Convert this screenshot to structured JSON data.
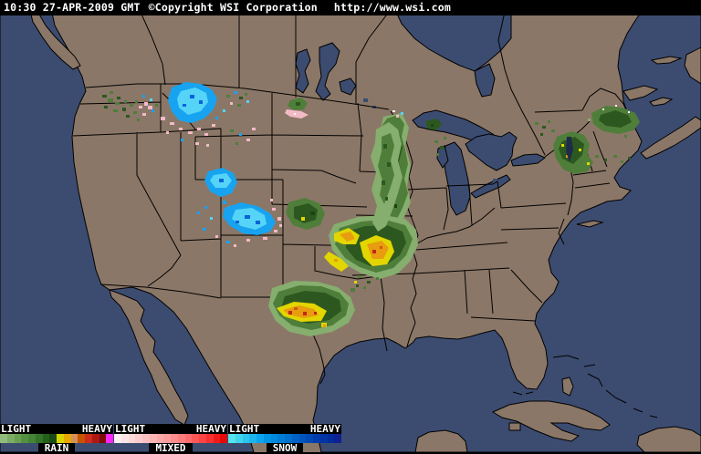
{
  "header": {
    "datetime": "10:30 27-APR-2009 GMT",
    "copyright": "©Copyright WSI Corporation",
    "url": "http://www.wsi.com"
  },
  "legend": {
    "light_label": "LIGHT",
    "heavy_label": "HEAVY",
    "scales": [
      {
        "name": "RAIN",
        "colors": [
          "#90BC7C",
          "#7CAC64",
          "#68A050",
          "#549044",
          "#448434",
          "#347428",
          "#24601C",
          "#184C12",
          "#D8D400",
          "#E8A800",
          "#D49058",
          "#C85400",
          "#CC2C1C",
          "#AC1814",
          "#7C0C0C",
          "#F828F8"
        ]
      },
      {
        "name": "MIXED",
        "colors": [
          "#FCF0F0",
          "#FCE4E4",
          "#FCD8D8",
          "#FCCCCC",
          "#FCC0C0",
          "#FCB4B4",
          "#FCA8A8",
          "#FC9C9C",
          "#FC8C8C",
          "#FC7C7C",
          "#FC6C6C",
          "#FC5858",
          "#FC4444",
          "#F83030",
          "#F01C1C",
          "#E80808"
        ]
      },
      {
        "name": "SNOW",
        "colors": [
          "#54E4EC",
          "#40D4EC",
          "#2CC4EC",
          "#1CB4EC",
          "#0CA4EC",
          "#0094E4",
          "#0088DC",
          "#007CD4",
          "#0070CC",
          "#0060C4",
          "#0054BC",
          "#0048B4",
          "#003CAC",
          "#0034A4",
          "#002C9C",
          "#102090"
        ]
      }
    ]
  },
  "map": {
    "colors": {
      "land": "#8B7767",
      "water": "#3C4C70",
      "border": "#000000",
      "header_bg": "#000000"
    },
    "radar_palette": {
      "rain_light": "#86AE6E",
      "rain_mid": "#4F7E3A",
      "rain_dark": "#2C5820",
      "rain_darkest": "#1C4412",
      "yellow": "#E3D500",
      "orange": "#E89C10",
      "orange_deep": "#D05808",
      "red": "#C22814",
      "snow_bright": "#55D4F8",
      "snow_mid": "#17A3F0",
      "snow_deep": "#0A64D8",
      "mixed_pink": "#F2BAC6",
      "white": "#F8F8F8"
    },
    "precipitation_regions": [
      {
        "area": "Pacific Northwest (Washington/Idaho)",
        "type": "light rain and mixed showers"
      },
      {
        "area": "Western Montana Rockies",
        "type": "snow with mixed edges"
      },
      {
        "area": "Wyoming / Colorado Rockies",
        "type": "snow with mixed edges"
      },
      {
        "area": "Central Kansas",
        "type": "rain cell"
      },
      {
        "area": "Missouri / Illinois",
        "type": "widespread rain with heavy yellow-orange cores"
      },
      {
        "area": "Central Texas",
        "type": "rain with heavy yellow-orange-red cores"
      },
      {
        "area": "Wisconsin / Upper Michigan",
        "type": "light rain band"
      },
      {
        "area": "Vermont / New Hampshire",
        "type": "rain with embedded heavier cells"
      },
      {
        "area": "Maine / New Brunswick",
        "type": "light rain"
      },
      {
        "area": "North Dakota border",
        "type": "rain / mixed specks"
      }
    ]
  }
}
